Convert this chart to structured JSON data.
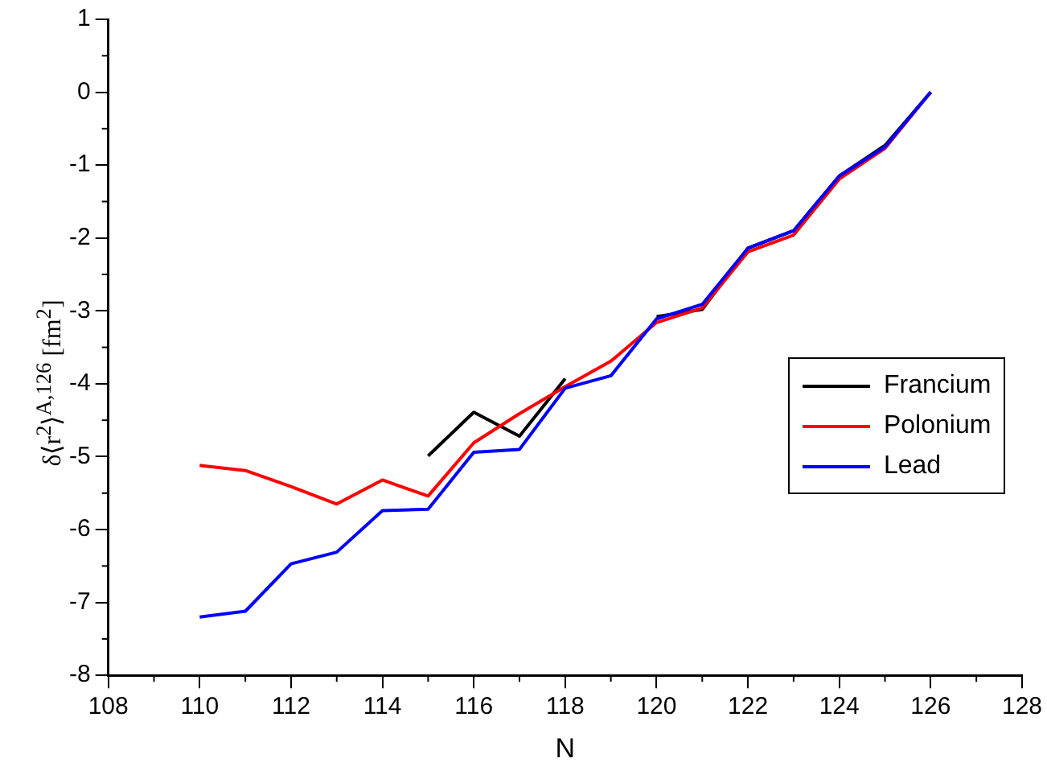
{
  "chart_data": {
    "type": "line",
    "xlabel": "N",
    "ylabel": "δ⟨r$^{2}$⟩$^{A,126}$ [fm$^{2}$]",
    "x": [
      110,
      111,
      112,
      113,
      114,
      115,
      116,
      117,
      118,
      119,
      120,
      121,
      122,
      123,
      124,
      125,
      126
    ],
    "series": [
      {
        "name": "Francium",
        "color": "#000000",
        "values": [
          null,
          null,
          null,
          null,
          null,
          -4.99,
          -4.39,
          -4.72,
          -3.93,
          null,
          -3.08,
          -2.98,
          -2.14,
          -1.9,
          -1.15,
          -0.73,
          0
        ]
      },
      {
        "name": "Polonium",
        "color": "#ff0000",
        "values": [
          -5.12,
          -5.19,
          -5.41,
          -5.65,
          -5.32,
          -5.54,
          -4.81,
          -4.41,
          -4.04,
          -3.69,
          -3.16,
          -2.96,
          -2.19,
          -1.96,
          -1.19,
          -0.77,
          0
        ]
      },
      {
        "name": "Lead",
        "color": "#0000ff",
        "values": [
          -7.2,
          -7.12,
          -6.47,
          -6.31,
          -5.74,
          -5.72,
          -4.94,
          -4.9,
          -4.06,
          -3.89,
          -3.11,
          -2.91,
          -2.14,
          -1.9,
          -1.15,
          -0.75,
          0
        ]
      }
    ],
    "xlim": [
      108,
      128
    ],
    "xticks": [
      108,
      110,
      112,
      114,
      116,
      118,
      120,
      122,
      124,
      126,
      128
    ],
    "ylim": [
      -8,
      1
    ],
    "yticks": [
      -8,
      -7,
      -6,
      -5,
      -4,
      -3,
      -2,
      -1,
      0,
      1
    ],
    "grid": false,
    "legend": "right",
    "marker": "none",
    "line_style": "solid"
  }
}
